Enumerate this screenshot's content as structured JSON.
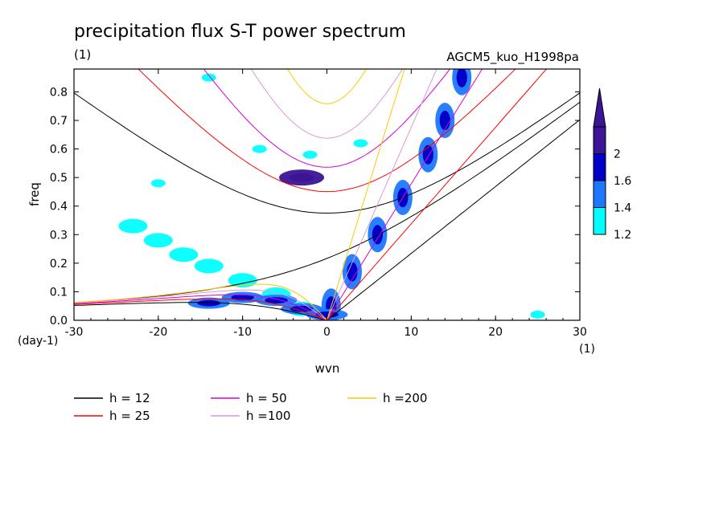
{
  "chart_data": {
    "type": "contour",
    "title": "precipitation flux S-T power spectrum",
    "subtitle_left": "(1)",
    "subtitle_right": "AGCM5_kuo_H1998pa",
    "xlabel": "wvn",
    "ylabel": "freq",
    "x_unit": "(1)",
    "y_unit": "(day-1)",
    "xlim": [
      -30,
      30
    ],
    "ylim": [
      0,
      0.88
    ],
    "xticks": [
      -30,
      -20,
      -10,
      0,
      10,
      20,
      30
    ],
    "xtick_labels": [
      "-30",
      "-20",
      "-10",
      "0",
      "10",
      "20",
      "30"
    ],
    "yticks": [
      0,
      0.1,
      0.2,
      0.3,
      0.4,
      0.5,
      0.6,
      0.7,
      0.8
    ],
    "ytick_labels": [
      "0.0",
      "0.1",
      "0.2",
      "0.3",
      "0.4",
      "0.5",
      "0.6",
      "0.7",
      "0.8"
    ],
    "colorbar": {
      "levels": [
        1.2,
        1.4,
        1.6,
        2
      ],
      "labels": [
        "1.2",
        "1.4",
        "1.6",
        "2"
      ],
      "colors": [
        "#00ffff",
        "#1e78ff",
        "#0000c8",
        "#3c1496"
      ]
    },
    "shading_regions": [
      {
        "name": "kelvin-band",
        "x": [
          0.5,
          3,
          6,
          9,
          12,
          14,
          16
        ],
        "y": [
          0.05,
          0.17,
          0.3,
          0.43,
          0.58,
          0.7,
          0.85
        ],
        "half_width": 1.1,
        "level": 1.4
      },
      {
        "name": "mrg-band",
        "x": [
          -3,
          -6,
          -10,
          -14,
          -17,
          -20,
          -23
        ],
        "y": [
          0.04,
          0.09,
          0.14,
          0.19,
          0.23,
          0.28,
          0.33
        ],
        "half_width": 0.02,
        "level": 1.2
      },
      {
        "name": "low-freq-ridge",
        "x": [
          -14,
          -10,
          -6,
          -3,
          0
        ],
        "y": [
          0.06,
          0.08,
          0.07,
          0.04,
          0.02
        ],
        "half_width": 0.015,
        "level": 1.4
      },
      {
        "name": "n1-eig-blob",
        "x": [
          -3
        ],
        "y": [
          0.5
        ],
        "half_width": 0.02,
        "level": 2
      },
      {
        "name": "inertia-gravity-patches",
        "x": [
          -8,
          -2,
          4,
          -14,
          -20,
          25
        ],
        "y": [
          0.6,
          0.58,
          0.62,
          0.85,
          0.48,
          0.02
        ],
        "half_width": 0.02,
        "level": 1.2
      }
    ],
    "dispersion_curves": {
      "legend_labels": [
        "h = 12",
        "h = 25",
        "h = 50",
        "h =100",
        "h =200"
      ],
      "colors": [
        "#000000",
        "#ff0000",
        "#d800d8",
        "#d89ad8",
        "#ffc800"
      ],
      "equivalent_depths_m": [
        12,
        25,
        50,
        100,
        200
      ]
    }
  }
}
